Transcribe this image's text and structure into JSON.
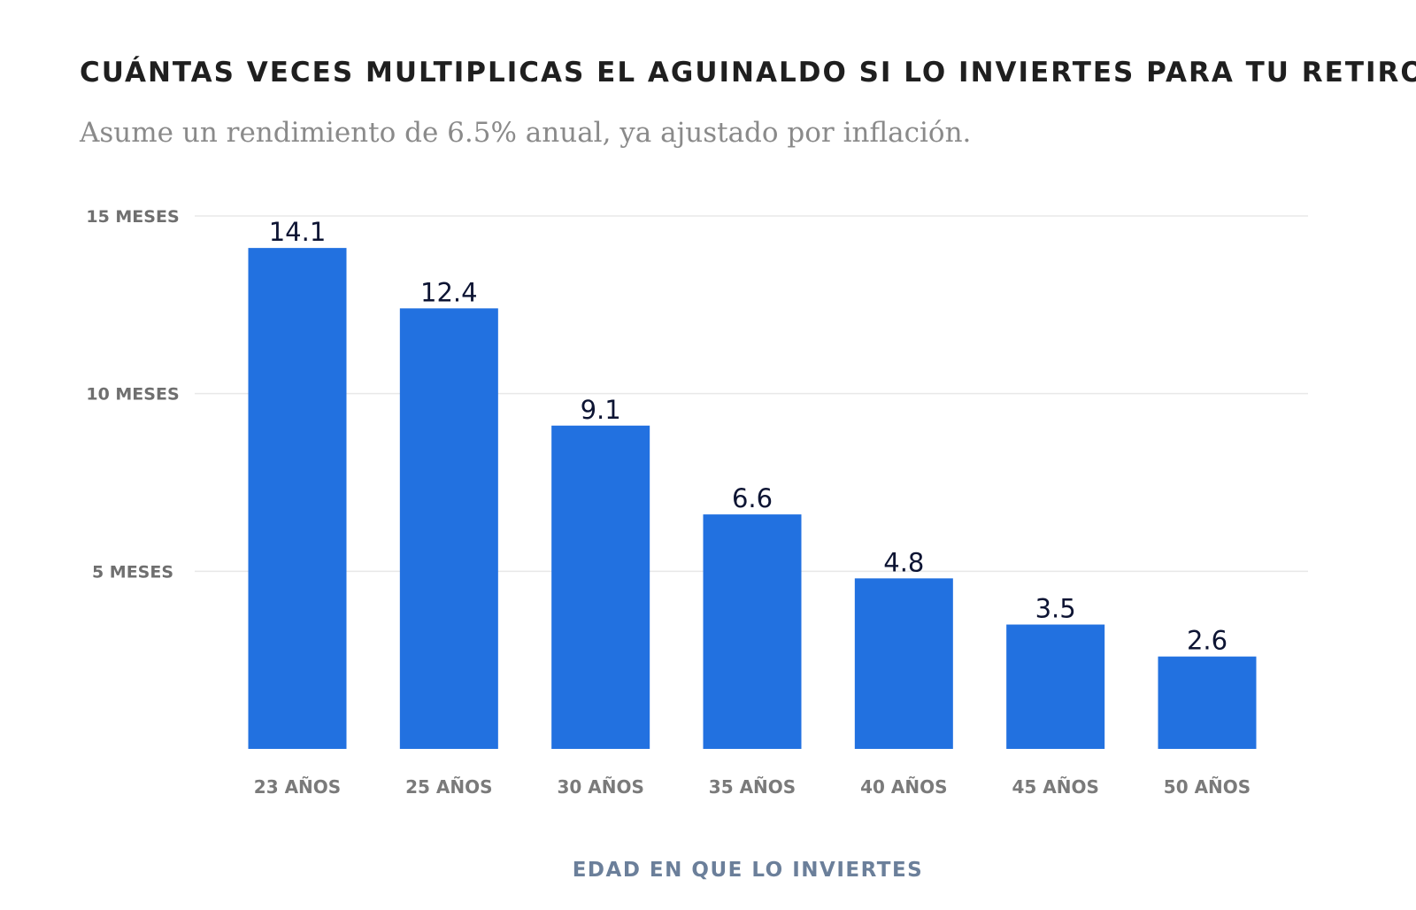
{
  "title": "CUÁNTAS VECES MULTIPLICAS EL AGUINALDO SI LO INVIERTES PARA TU RETIRO",
  "subtitle": "Asume un rendimiento de 6.5% anual, ya ajustado por inflación.",
  "colors": {
    "bar": "#2271E0",
    "gridline": "#e8e8e8"
  },
  "chart_data": {
    "type": "bar",
    "title": "CUÁNTAS VECES MULTIPLICAS EL AGUINALDO SI LO INVIERTES PARA TU RETIRO",
    "subtitle": "Asume un rendimiento de 6.5% anual, ya ajustado por inflación.",
    "xlabel": "EDAD EN QUE LO INVIERTES",
    "ylabel": "",
    "categories": [
      "23 AÑOS",
      "25 AÑOS",
      "30 AÑOS",
      "35 AÑOS",
      "40 AÑOS",
      "45 AÑOS",
      "50 AÑOS"
    ],
    "values": [
      14.1,
      12.4,
      9.1,
      6.6,
      4.8,
      3.5,
      2.6
    ],
    "data_labels": [
      "14.1",
      "12.4",
      "9.1",
      "6.6",
      "4.8",
      "3.5",
      "2.6"
    ],
    "ylim": [
      0,
      15
    ],
    "yticks": [
      {
        "value": 5,
        "label": "5 MESES"
      },
      {
        "value": 10,
        "label": "10 MESES"
      },
      {
        "value": 15,
        "label": "15 MESES"
      }
    ],
    "grid": true,
    "legend": "none"
  }
}
